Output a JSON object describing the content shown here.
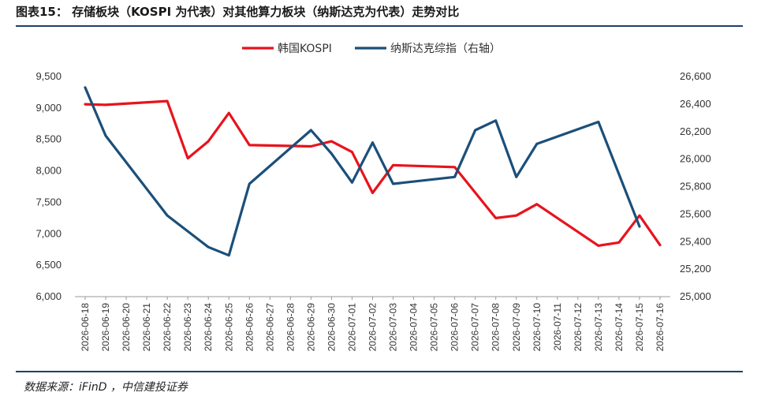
{
  "header": {
    "title": "图表15：  存储板块（KOSPI 为代表）对其他算力板块（纳斯达克为代表）走势对比"
  },
  "footer": {
    "source": "数据来源：iFinD ，中信建投证券"
  },
  "chart_data": {
    "type": "line",
    "categories": [
      "2026-06-18",
      "2026-06-19",
      "2026-06-20",
      "2026-06-21",
      "2026-06-22",
      "2026-06-23",
      "2026-06-24",
      "2026-06-25",
      "2026-06-26",
      "2026-06-27",
      "2026-06-28",
      "2026-06-29",
      "2026-06-30",
      "2026-07-01",
      "2026-07-02",
      "2026-07-03",
      "2026-07-04",
      "2026-07-05",
      "2026-07-06",
      "2026-07-07",
      "2026-07-08",
      "2026-07-09",
      "2026-07-10",
      "2026-07-11",
      "2026-07-12",
      "2026-07-13",
      "2026-07-14",
      "2026-07-15",
      "2026-07-16"
    ],
    "series": [
      {
        "name": "韩国KOSPI",
        "axis": "left",
        "color": "#e8131c",
        "points": [
          [
            "2026-06-18",
            9060
          ],
          [
            "2026-06-19",
            9050
          ],
          [
            "2026-06-22",
            9110
          ],
          [
            "2026-06-23",
            8200
          ],
          [
            "2026-06-24",
            8470
          ],
          [
            "2026-06-25",
            8920
          ],
          [
            "2026-06-26",
            8410
          ],
          [
            "2026-06-29",
            8390
          ],
          [
            "2026-06-30",
            8470
          ],
          [
            "2026-07-01",
            8300
          ],
          [
            "2026-07-02",
            7650
          ],
          [
            "2026-07-03",
            8090
          ],
          [
            "2026-07-06",
            8060
          ],
          [
            "2026-07-08",
            7250
          ],
          [
            "2026-07-09",
            7290
          ],
          [
            "2026-07-10",
            7470
          ],
          [
            "2026-07-13",
            6810
          ],
          [
            "2026-07-14",
            6860
          ],
          [
            "2026-07-15",
            7290
          ],
          [
            "2026-07-16",
            6820
          ]
        ]
      },
      {
        "name": "纳斯达克综指（右轴）",
        "axis": "right",
        "color": "#1b4f7a",
        "points": [
          [
            "2026-06-18",
            26520
          ],
          [
            "2026-06-19",
            26170
          ],
          [
            "2026-06-22",
            25590
          ],
          [
            "2026-06-24",
            25360
          ],
          [
            "2026-06-25",
            25300
          ],
          [
            "2026-06-26",
            25820
          ],
          [
            "2026-06-29",
            26210
          ],
          [
            "2026-06-30",
            26040
          ],
          [
            "2026-07-01",
            25830
          ],
          [
            "2026-07-02",
            26120
          ],
          [
            "2026-07-03",
            25820
          ],
          [
            "2026-07-06",
            25870
          ],
          [
            "2026-07-07",
            26210
          ],
          [
            "2026-07-08",
            26280
          ],
          [
            "2026-07-09",
            25870
          ],
          [
            "2026-07-10",
            26110
          ],
          [
            "2026-07-13",
            26270
          ],
          [
            "2026-07-15",
            25510
          ]
        ]
      }
    ],
    "y_left": {
      "min": 6000,
      "max": 9500,
      "ticks": [
        "6,000",
        "6,500",
        "7,000",
        "7,500",
        "8,000",
        "8,500",
        "9,000",
        "9,500"
      ]
    },
    "y_right": {
      "min": 25000,
      "max": 26600,
      "ticks": [
        "25,000",
        "25,200",
        "25,400",
        "25,600",
        "25,800",
        "26,000",
        "26,200",
        "26,400",
        "26,600"
      ]
    },
    "legend_position": "top-center",
    "grid": false
  }
}
